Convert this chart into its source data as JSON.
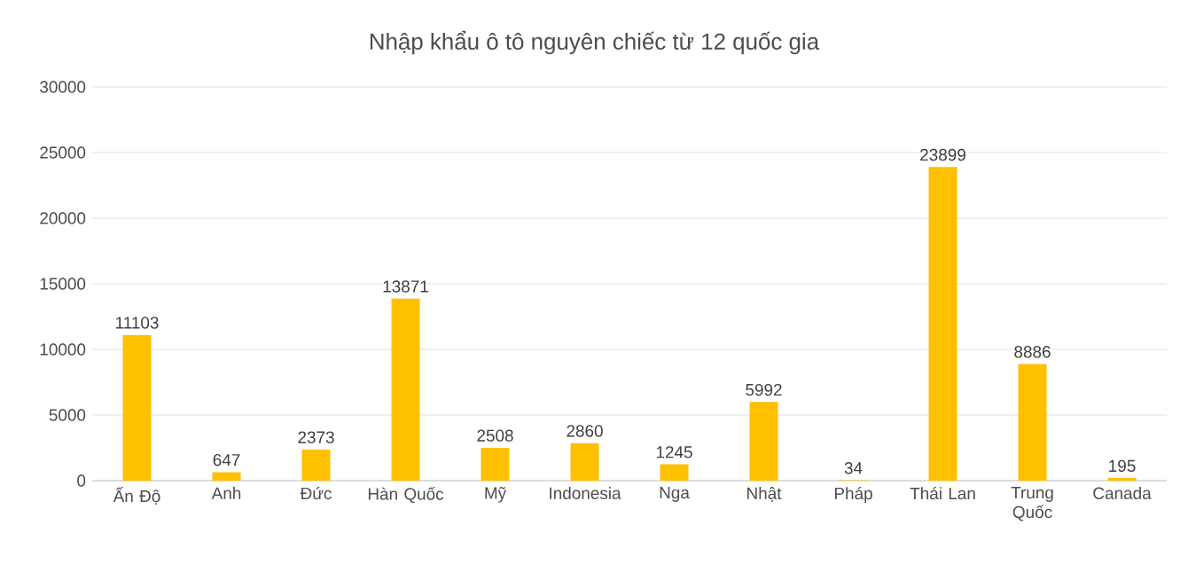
{
  "chart_data": {
    "type": "bar",
    "title": "Nhập khẩu ô tô nguyên chiếc từ 12 quốc gia",
    "categories": [
      "Ấn Độ",
      "Anh",
      "Đức",
      "Hàn Quốc",
      "Mỹ",
      "Indonesia",
      "Nga",
      "Nhật",
      "Pháp",
      "Thái Lan",
      "Trung Quốc",
      "Canada"
    ],
    "values": [
      11103,
      647,
      2373,
      13871,
      2508,
      2860,
      1245,
      5992,
      34,
      23899,
      8886,
      195
    ],
    "color": "#ffc000",
    "ylim": [
      0,
      30000
    ],
    "yticks": [
      0,
      5000,
      10000,
      15000,
      20000,
      25000,
      30000
    ],
    "grid": "y",
    "data_labels": true
  }
}
